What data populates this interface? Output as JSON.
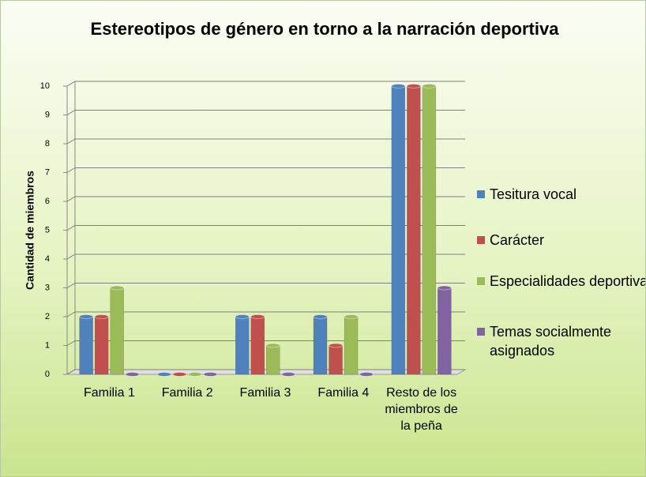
{
  "chart_data": {
    "type": "bar",
    "title": "Estereotipos de género en torno a la narración deportiva",
    "y_label": "Cantidad de miembros",
    "categories": [
      "Familia 1",
      "Familia 2",
      "Familia 3",
      "Familia 4",
      "Resto de los miembros de la peña"
    ],
    "series": [
      {
        "name": "Tesitura vocal",
        "color": "#4f81bd",
        "values": [
          2,
          0,
          2,
          2,
          10
        ]
      },
      {
        "name": "Carácter",
        "color": "#c0504d",
        "values": [
          2,
          0,
          2,
          1,
          10
        ]
      },
      {
        "name": "Especialidades deportivas",
        "color": "#9bbb59",
        "values": [
          3,
          0,
          1,
          2,
          10
        ]
      },
      {
        "name": "Temas socialmente asignados",
        "color": "#8064a2",
        "values": [
          0,
          0,
          0,
          0,
          3
        ]
      }
    ],
    "ylim": [
      0,
      10
    ],
    "yticks": [
      0,
      1,
      2,
      3,
      4,
      5,
      6,
      7,
      8,
      9,
      10
    ],
    "grid": true,
    "legend": "right"
  }
}
